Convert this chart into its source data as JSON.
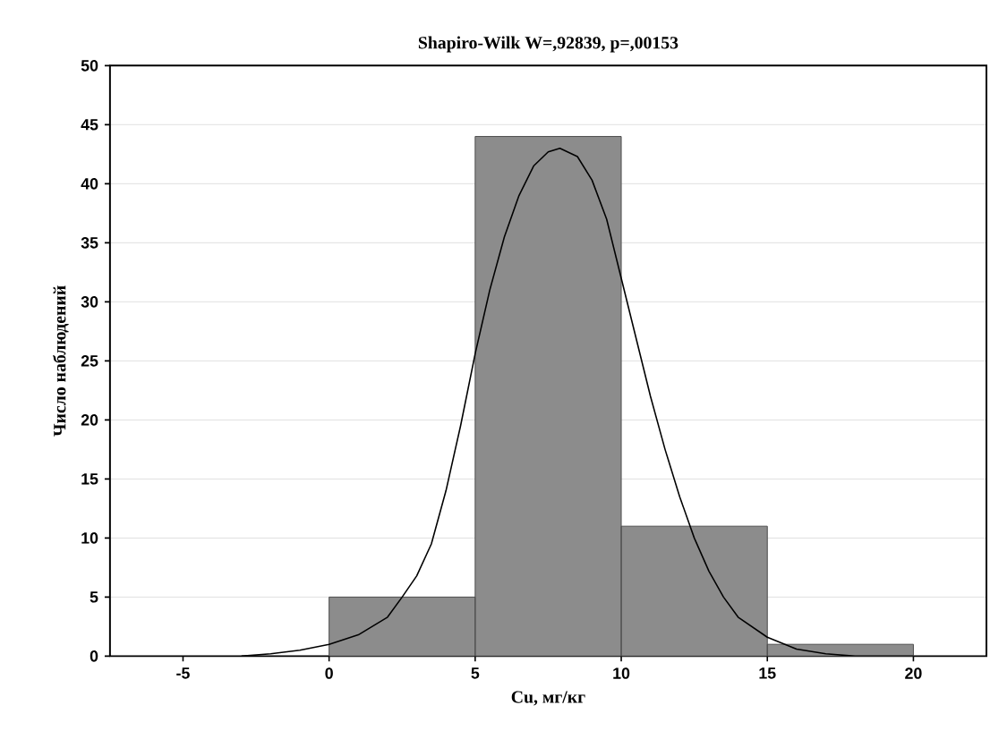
{
  "chart_data": {
    "type": "histogram",
    "title": "Shapiro-Wilk W=,92839, p=,00153",
    "xlabel": "Cu, мг/кг",
    "ylabel": "Число наблюдений",
    "bins": [
      0,
      5,
      10,
      15,
      20
    ],
    "values": [
      5,
      44,
      11,
      1
    ],
    "color": "#8c8c8c",
    "series": [
      {
        "type": "line",
        "color": "#000000",
        "x": [
          -3,
          -2,
          -1,
          0,
          1,
          2,
          2.5,
          3,
          3.5,
          4,
          4.5,
          5,
          5.5,
          6,
          6.5,
          7,
          7.5,
          7.9,
          8.5,
          9,
          9.5,
          10,
          10.5,
          11,
          11.5,
          12,
          12.5,
          13,
          13.5,
          14,
          15,
          16,
          17,
          18,
          19,
          20
        ],
        "values": [
          0,
          0.2,
          0.5,
          1,
          1.8,
          3.3,
          5,
          6.8,
          9.5,
          14,
          19.5,
          25.6,
          31,
          35.5,
          39,
          41.5,
          42.7,
          43,
          42.3,
          40.3,
          37,
          32,
          27,
          22,
          17.5,
          13.5,
          10,
          7.2,
          5,
          3.3,
          1.6,
          0.6,
          0.2,
          0,
          0,
          0
        ]
      }
    ],
    "xlim": [
      -7.5,
      22.5
    ],
    "ylim": [
      0,
      50
    ],
    "xticks": [
      -5,
      0,
      5,
      10,
      15,
      20
    ],
    "yticks": [
      0,
      5,
      10,
      15,
      20,
      25,
      30,
      35,
      40,
      45,
      50
    ],
    "grid": "y"
  }
}
